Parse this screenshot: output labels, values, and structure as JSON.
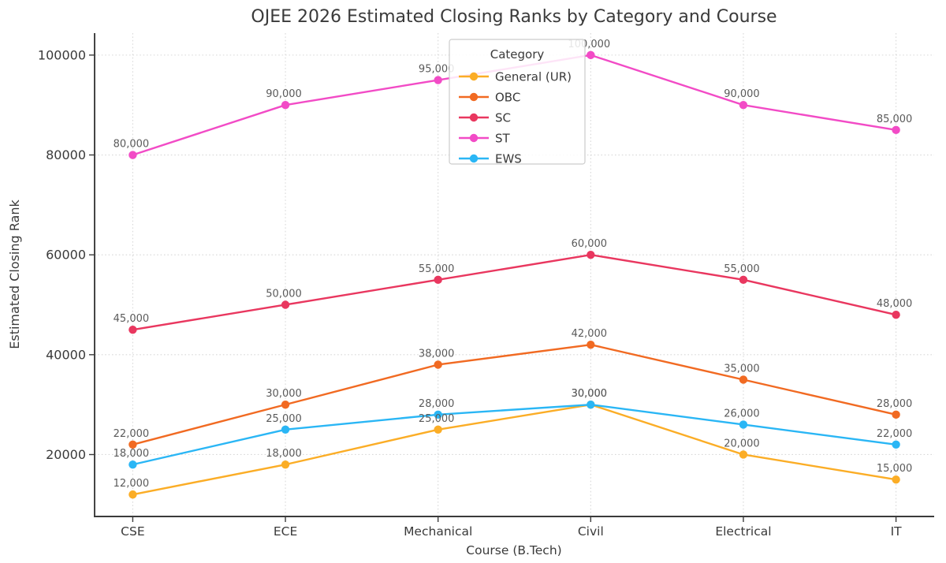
{
  "chart_data": {
    "type": "line",
    "title": "OJEE 2026 Estimated Closing Ranks by Category and Course",
    "xlabel": "Course (B.Tech)",
    "ylabel": "Estimated Closing Rank",
    "categories": [
      "CSE",
      "ECE",
      "Mechanical",
      "Civil",
      "Electrical",
      "IT"
    ],
    "series": [
      {
        "name": "General (UR)",
        "color": "#FBAD26",
        "values": [
          12000,
          18000,
          25000,
          30000,
          20000,
          15000
        ]
      },
      {
        "name": "OBC",
        "color": "#F16A22",
        "values": [
          22000,
          30000,
          38000,
          42000,
          35000,
          28000
        ]
      },
      {
        "name": "SC",
        "color": "#E9375F",
        "values": [
          45000,
          50000,
          55000,
          60000,
          55000,
          48000
        ]
      },
      {
        "name": "ST",
        "color": "#F24BC6",
        "values": [
          80000,
          90000,
          95000,
          100000,
          90000,
          85000
        ]
      },
      {
        "name": "EWS",
        "color": "#2AB6F5",
        "values": [
          18000,
          25000,
          28000,
          30000,
          26000,
          22000
        ]
      }
    ],
    "legend": {
      "title": "Category",
      "position": "upper center",
      "entries": [
        "General (UR)",
        "OBC",
        "SC",
        "ST",
        "EWS"
      ]
    },
    "yticks": [
      20000,
      40000,
      60000,
      80000,
      100000
    ],
    "ytick_labels": [
      "20000",
      "40000",
      "60000",
      "80000",
      "100000"
    ],
    "ylim": [
      7600,
      104400
    ],
    "grid": "dotted both horizontal and vertical",
    "point_labels": "each point labeled with comma-formatted value",
    "style": {
      "background": "#ffffff",
      "grid_color": "#d8d8d8",
      "axis_color": "#3b3b3b",
      "text_color": "#3a3a3a",
      "point_label_color": "#5a5a5a",
      "legend_border_color": "#cccccc",
      "legend_background": "rgba(255,255,255,0.85)"
    }
  }
}
